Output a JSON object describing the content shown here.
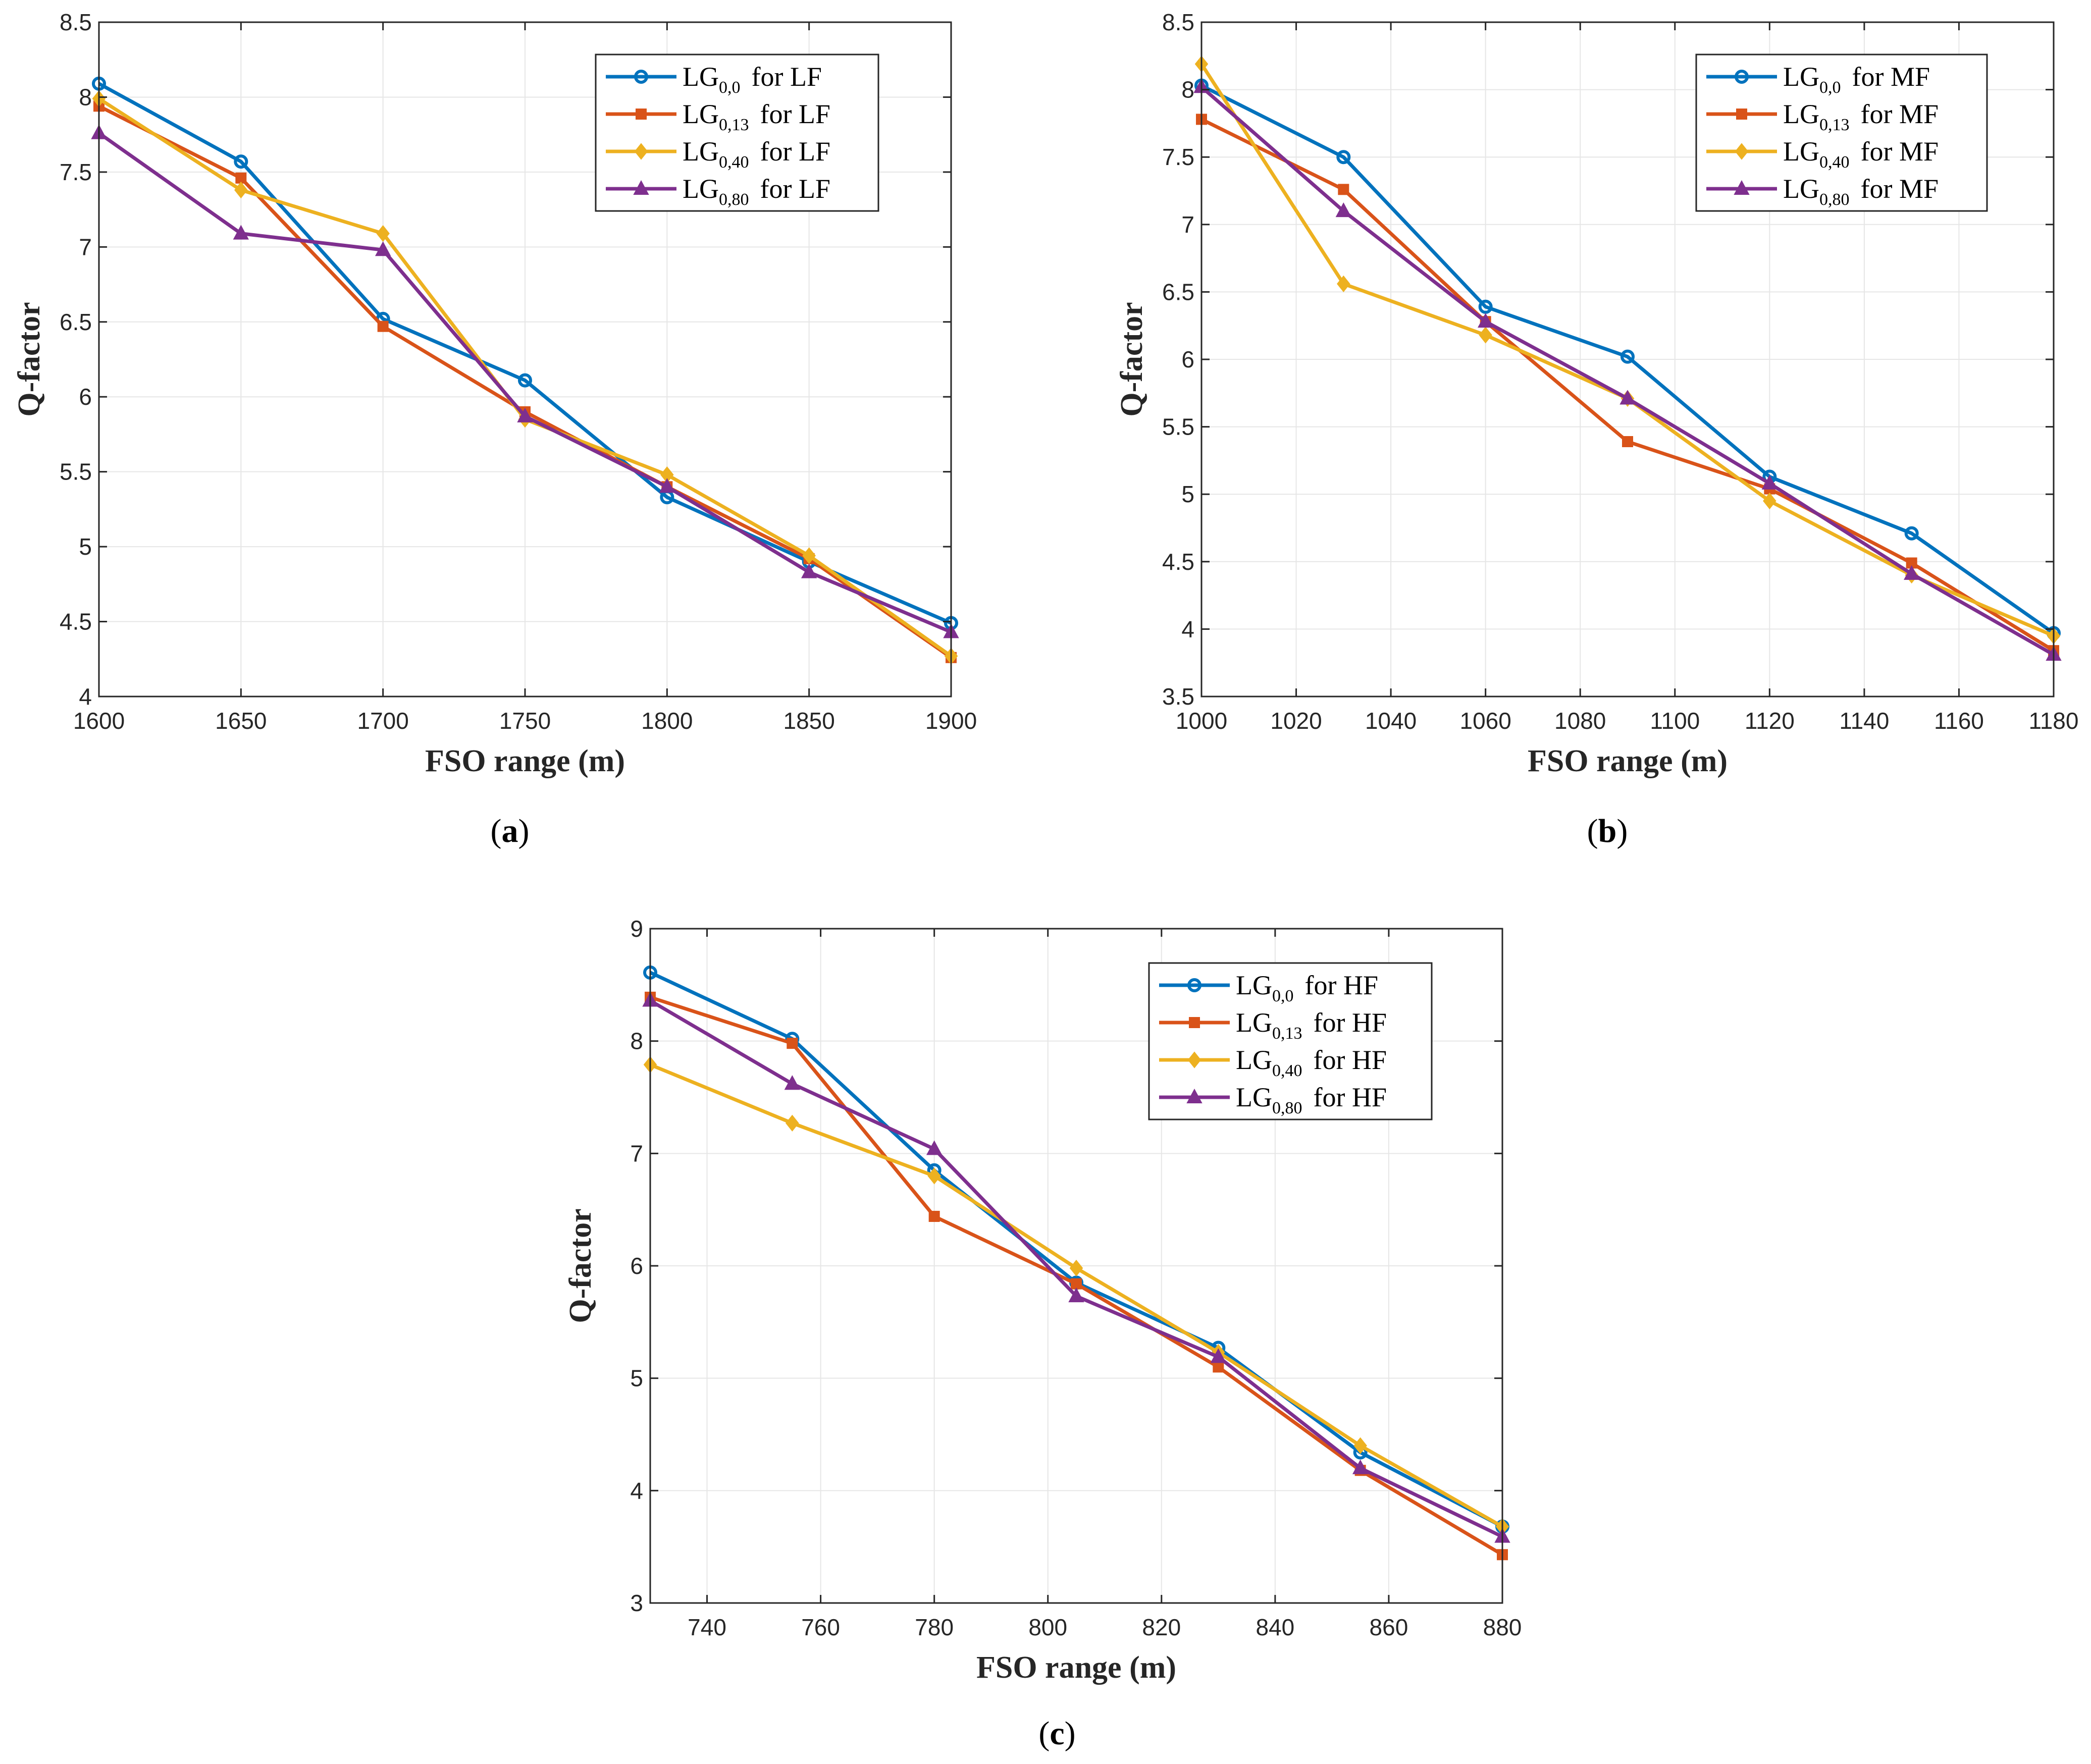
{
  "colors": {
    "series": [
      "#0072BD",
      "#D95319",
      "#EDB120",
      "#7E2F8E"
    ],
    "grid": "#e6e6e6",
    "axis": "#262626",
    "background": "#ffffff"
  },
  "markers": [
    "circle-marker-icon",
    "square-marker-icon",
    "diamond-marker-icon",
    "triangle-marker-icon"
  ],
  "chart_data": [
    {
      "panel": "a",
      "caption": {
        "open": "(",
        "letter": "a",
        "close": ")"
      },
      "type": "line",
      "title": "",
      "xlabel": "FSO range (m)",
      "ylabel": "Q-factor",
      "xlim": [
        1600,
        1900
      ],
      "ylim": [
        4,
        8.5
      ],
      "xticks": [
        1600,
        1650,
        1700,
        1750,
        1800,
        1850,
        1900
      ],
      "yticks": [
        4,
        4.5,
        5,
        5.5,
        6,
        6.5,
        7,
        7.5,
        8,
        8.5
      ],
      "xtick_labels": [
        "1600",
        "1650",
        "1700",
        "1750",
        "1800",
        "1850",
        "1900"
      ],
      "ytick_labels": [
        "4",
        "4.5",
        "5",
        "5.5",
        "6",
        "6.5",
        "7",
        "7.5",
        "8",
        "8.5"
      ],
      "grid": true,
      "legend_position": "top-right",
      "x": [
        1600,
        1650,
        1700,
        1750,
        1800,
        1850,
        1900
      ],
      "series": [
        {
          "base": "LG",
          "sub": "0,0",
          "suffix": "for LF",
          "values": [
            8.09,
            7.57,
            6.52,
            6.11,
            5.33,
            4.9,
            4.49
          ]
        },
        {
          "base": "LG",
          "sub": "0,13",
          "suffix": "for LF",
          "values": [
            7.94,
            7.46,
            6.47,
            5.9,
            5.4,
            4.92,
            4.26
          ]
        },
        {
          "base": "LG",
          "sub": "0,40",
          "suffix": "for LF",
          "values": [
            7.99,
            7.38,
            7.09,
            5.85,
            5.48,
            4.94,
            4.27
          ]
        },
        {
          "base": "LG",
          "sub": "0,80",
          "suffix": "for LF",
          "values": [
            7.76,
            7.09,
            6.98,
            5.87,
            5.4,
            4.83,
            4.43
          ]
        }
      ]
    },
    {
      "panel": "b",
      "caption": {
        "open": "(",
        "letter": "b",
        "close": ")"
      },
      "type": "line",
      "title": "",
      "xlabel": "FSO range (m)",
      "ylabel": "Q-factor",
      "xlim": [
        1000,
        1180
      ],
      "ylim": [
        3.5,
        8.5
      ],
      "xticks": [
        1000,
        1020,
        1040,
        1060,
        1080,
        1100,
        1120,
        1140,
        1160,
        1180
      ],
      "yticks": [
        3.5,
        4,
        4.5,
        5,
        5.5,
        6,
        6.5,
        7,
        7.5,
        8,
        8.5
      ],
      "xtick_labels": [
        "1000",
        "1020",
        "1040",
        "1060",
        "1080",
        "1100",
        "1120",
        "1140",
        "1160",
        "1180"
      ],
      "ytick_labels": [
        "3.5",
        "4",
        "4.5",
        "5",
        "5.5",
        "6",
        "6.5",
        "7",
        "7.5",
        "8",
        "8.5"
      ],
      "grid": true,
      "legend_position": "top-right",
      "x": [
        1000,
        1030,
        1060,
        1090,
        1120,
        1150,
        1180
      ],
      "series": [
        {
          "base": "LG",
          "sub": "0,0",
          "suffix": "for MF",
          "values": [
            8.03,
            7.5,
            6.39,
            6.02,
            5.13,
            4.71,
            3.97
          ]
        },
        {
          "base": "LG",
          "sub": "0,13",
          "suffix": "for MF",
          "values": [
            7.78,
            7.26,
            6.28,
            5.39,
            5.04,
            4.49,
            3.84
          ]
        },
        {
          "base": "LG",
          "sub": "0,40",
          "suffix": "for MF",
          "values": [
            8.19,
            6.56,
            6.18,
            5.71,
            4.95,
            4.4,
            3.95
          ]
        },
        {
          "base": "LG",
          "sub": "0,80",
          "suffix": "for MF",
          "values": [
            8.02,
            7.1,
            6.28,
            5.71,
            5.08,
            4.41,
            3.81
          ]
        }
      ]
    },
    {
      "panel": "c",
      "caption": {
        "open": "(",
        "letter": "c",
        "close": ")"
      },
      "type": "line",
      "title": "",
      "xlabel": "FSO range (m)",
      "ylabel": "Q-factor",
      "xlim": [
        730,
        880
      ],
      "ylim": [
        3,
        9
      ],
      "xticks": [
        740,
        760,
        780,
        800,
        820,
        840,
        860,
        880
      ],
      "yticks": [
        3,
        4,
        5,
        6,
        7,
        8,
        9
      ],
      "xtick_labels": [
        "740",
        "760",
        "780",
        "800",
        "820",
        "840",
        "860",
        "880"
      ],
      "ytick_labels": [
        "3",
        "4",
        "5",
        "6",
        "7",
        "8",
        "9"
      ],
      "grid": true,
      "legend_position": "top-right",
      "x": [
        730,
        755,
        780,
        805,
        830,
        855,
        880
      ],
      "series": [
        {
          "base": "LG",
          "sub": "0,0",
          "suffix": "for HF",
          "values": [
            8.61,
            8.02,
            6.85,
            5.85,
            5.27,
            4.34,
            3.68
          ]
        },
        {
          "base": "LG",
          "sub": "0,13",
          "suffix": "for HF",
          "values": [
            8.39,
            7.98,
            6.44,
            5.84,
            5.1,
            4.18,
            3.43
          ]
        },
        {
          "base": "LG",
          "sub": "0,40",
          "suffix": "for HF",
          "values": [
            7.79,
            7.27,
            6.8,
            5.98,
            5.23,
            4.4,
            3.68
          ]
        },
        {
          "base": "LG",
          "sub": "0,80",
          "suffix": "for HF",
          "values": [
            8.36,
            7.62,
            7.04,
            5.73,
            5.19,
            4.2,
            3.59
          ]
        }
      ]
    }
  ]
}
